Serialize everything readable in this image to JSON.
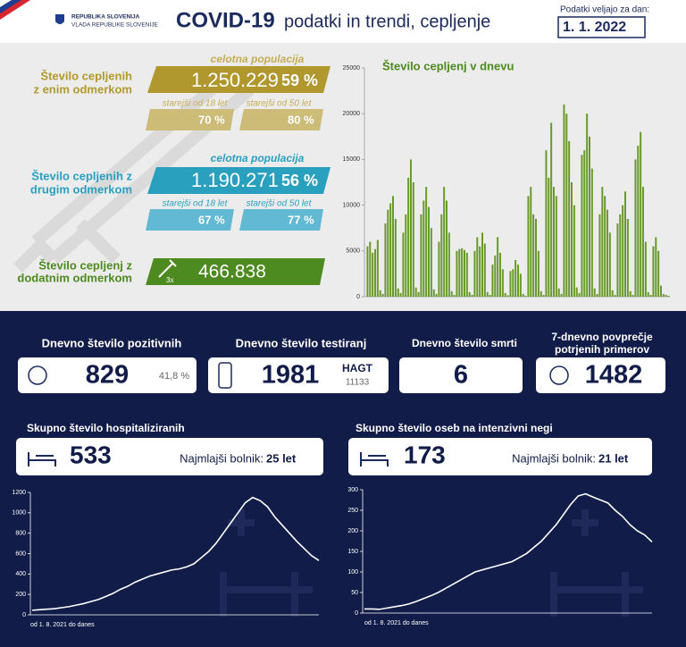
{
  "header": {
    "logo_line1": "REPUBLIKA SLOVENIJA",
    "logo_line2": "VLADA REPUBLIKE SLOVENIJE",
    "title_bold": "COVID-19",
    "title_rest": "podatki in trendi, cepljenje",
    "date_label": "Podatki veljajo za dan:",
    "date": "1. 1. 2022"
  },
  "vaccination": {
    "first_dose": {
      "label_line1": "Število cepljenih",
      "label_line2": "z enim odmerkom",
      "population_label": "celotna populacija",
      "total": "1.250.229",
      "percent": "59 %",
      "age18_label": "starejši od 18 let",
      "age18_percent": "70 %",
      "age50_label": "starejši od 50 let",
      "age50_percent": "80 %"
    },
    "second_dose": {
      "label_line1": "Število cepljenih z",
      "label_line2": "drugim odmerkom",
      "population_label": "celotna populacija",
      "total": "1.190.271",
      "percent": "56 %",
      "age18_label": "starejši od 18 let",
      "age18_percent": "67 %",
      "age50_label": "starejši od 50 let",
      "age50_percent": "77 %"
    },
    "booster": {
      "label_line1": "Število cepljenj z",
      "label_line2": "dodatnim odmerkom",
      "icon_label": "3x",
      "total": "466.838"
    }
  },
  "daily": {
    "positives": {
      "title": "Dnevno število pozitivnih",
      "value": "829",
      "percent": "41,8 %"
    },
    "tests": {
      "title": "Dnevno število testiranj",
      "value": "1981",
      "type": "HAGT",
      "type_value": "11133"
    },
    "deaths": {
      "title": "Dnevno število smrti",
      "value": "6"
    },
    "average": {
      "title_line1": "7-dnevno povprečje",
      "title_line2": "potrjenih primerov",
      "value": "1482"
    }
  },
  "hospital": {
    "title": "Skupno število hospitaliziranih",
    "value": "533",
    "youngest_label": "Najmlajši bolnik:",
    "youngest_value": "25 let"
  },
  "icu": {
    "title": "Skupno število oseb na intenzivni negi",
    "value": "173",
    "youngest_label": "Najmlajši bolnik:",
    "youngest_value": "21 let"
  },
  "chart_data": [
    {
      "type": "bar",
      "title": "Število cepljenj v dnevu",
      "color": "#6a9a2a",
      "ylim": [
        0,
        25000
      ],
      "yticks": [
        0,
        5000,
        10000,
        15000,
        20000,
        25000
      ],
      "values": [
        5500,
        6000,
        4800,
        5200,
        6200,
        700,
        300,
        8000,
        9500,
        10200,
        11000,
        8500,
        900,
        400,
        7000,
        9000,
        13000,
        15000,
        12500,
        1000,
        500,
        9000,
        10500,
        12000,
        9800,
        7500,
        800,
        300,
        6000,
        9000,
        12000,
        10500,
        7000,
        600,
        200,
        5000,
        5200,
        5300,
        5100,
        4800,
        500,
        200,
        5000,
        6500,
        5500,
        7000,
        5800,
        500,
        200,
        3500,
        4500,
        6500,
        4800,
        3000,
        400,
        150,
        2800,
        3000,
        4000,
        3500,
        2500,
        300,
        100,
        11000,
        12000,
        9000,
        8500,
        5000,
        600,
        200,
        16000,
        13000,
        19000,
        12000,
        11000,
        900,
        300,
        21000,
        20000,
        17000,
        12500,
        10000,
        1000,
        400,
        15500,
        16000,
        20000,
        17500,
        14000,
        900,
        300,
        9000,
        12000,
        11000,
        9500,
        7000,
        700,
        200,
        8000,
        9000,
        10000,
        11500,
        8500,
        600,
        200,
        15000,
        16500,
        18000,
        12000,
        6000,
        500,
        200,
        5500,
        6500,
        5000,
        1200,
        300,
        200,
        100
      ]
    },
    {
      "type": "line",
      "color": "#ffffff",
      "footnote": "od 1. 8. 2021 do danes",
      "ylim": [
        0,
        1200
      ],
      "yticks": [
        0,
        200,
        400,
        600,
        800,
        1000,
        1200
      ],
      "values": [
        45,
        50,
        55,
        60,
        70,
        80,
        95,
        110,
        130,
        150,
        180,
        210,
        250,
        280,
        320,
        350,
        380,
        400,
        420,
        440,
        450,
        470,
        500,
        560,
        620,
        700,
        800,
        900,
        1000,
        1100,
        1150,
        1120,
        1060,
        960,
        880,
        800,
        720,
        650,
        580,
        533
      ]
    },
    {
      "type": "line",
      "color": "#ffffff",
      "footnote": "od 1. 8. 2021 do danes",
      "ylim": [
        0,
        300
      ],
      "yticks": [
        0,
        50,
        100,
        150,
        200,
        250,
        300
      ],
      "values": [
        10,
        10,
        9,
        12,
        15,
        18,
        22,
        28,
        35,
        42,
        50,
        60,
        70,
        80,
        90,
        100,
        105,
        110,
        115,
        120,
        125,
        135,
        145,
        160,
        175,
        195,
        215,
        240,
        265,
        285,
        290,
        282,
        275,
        268,
        250,
        235,
        215,
        200,
        190,
        173
      ]
    }
  ]
}
